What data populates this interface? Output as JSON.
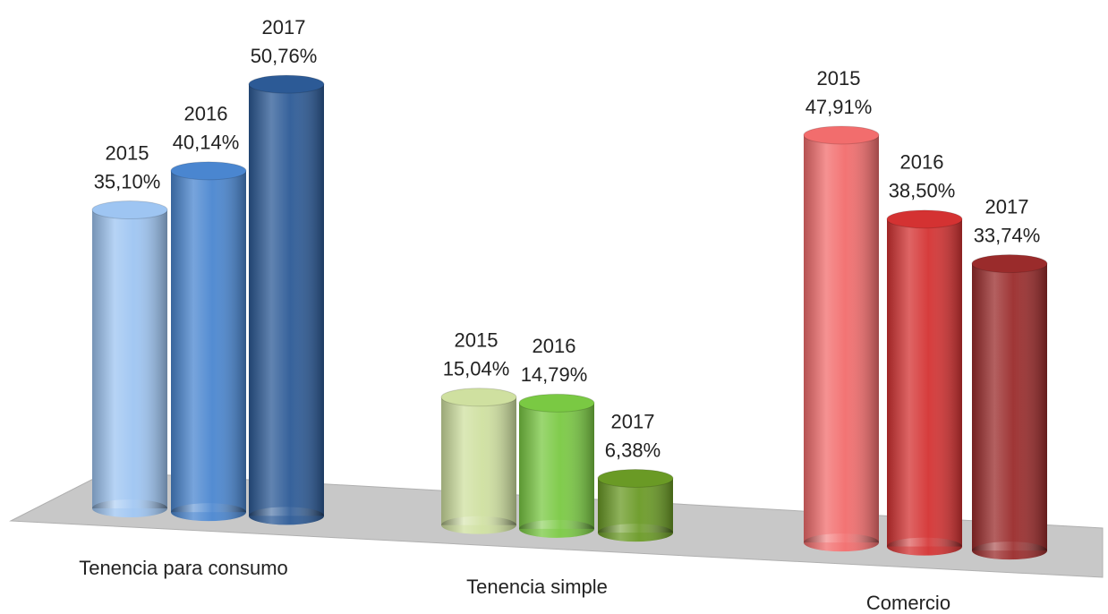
{
  "chart_data": {
    "type": "bar3d",
    "categories": [
      "Tenencia para consumo",
      "Tenencia simple",
      "Comercio"
    ],
    "series": [
      {
        "name": "2015",
        "colors": [
          "#9ec5f2",
          "#cfe0a0",
          "#f26d6d"
        ],
        "values": [
          35.1,
          15.04,
          47.91
        ],
        "value_labels": [
          "35,10%",
          "15,04%",
          "47,91%"
        ]
      },
      {
        "name": "2016",
        "colors": [
          "#4a86d0",
          "#7ac943",
          "#d43232"
        ],
        "values": [
          40.14,
          14.79,
          38.5
        ],
        "value_labels": [
          "40,14%",
          "14,79%",
          "38,50%"
        ]
      },
      {
        "name": "2017",
        "colors": [
          "#2c5a96",
          "#6a9a25",
          "#9a2b2b"
        ],
        "values": [
          50.76,
          6.38,
          33.74
        ],
        "value_labels": [
          "50,76%",
          "6,38%",
          "33,74%"
        ]
      }
    ]
  }
}
